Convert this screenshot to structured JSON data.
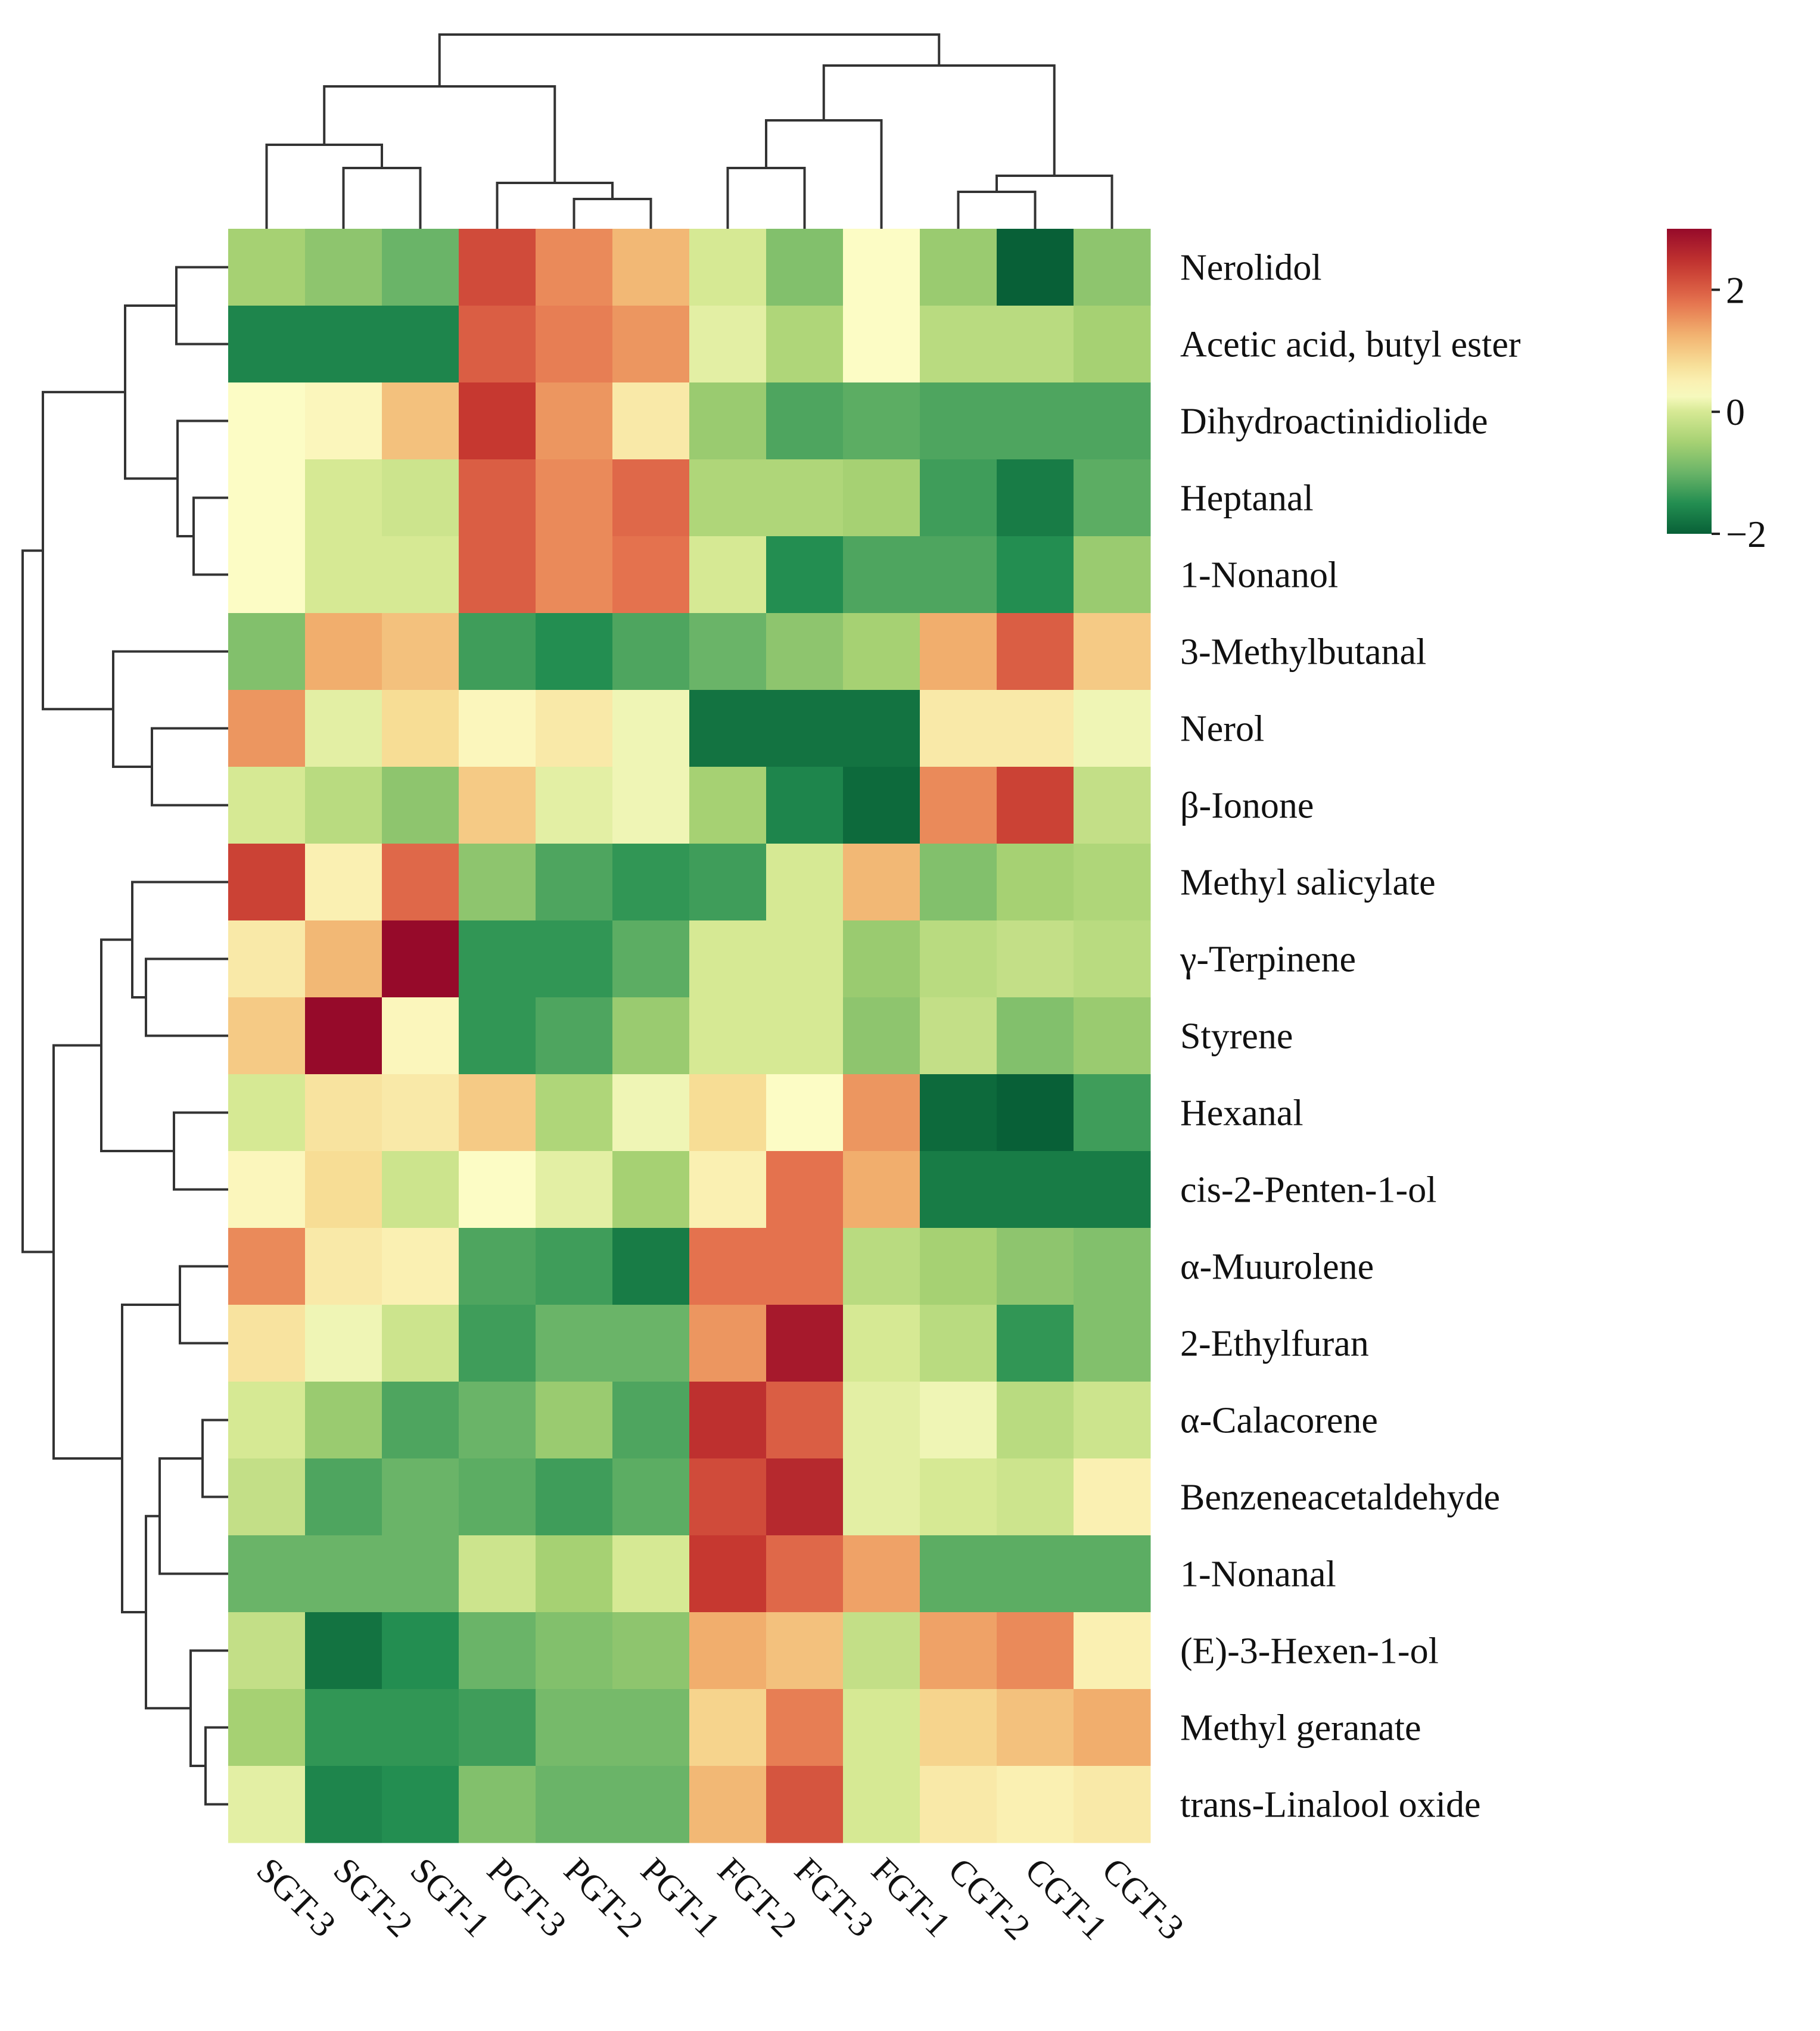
{
  "chart_data": {
    "type": "heatmap",
    "title": "",
    "columns": [
      "SGT-3",
      "SGT-2",
      "SGT-1",
      "PGT-3",
      "PGT-2",
      "PGT-1",
      "FGT-2",
      "FGT-3",
      "FGT-1",
      "CGT-2",
      "CGT-1",
      "CGT-3"
    ],
    "rows": [
      "Nerolidol",
      "Acetic acid, butyl ester",
      "Dihydroactinidiolide",
      "Heptanal",
      "1-Nonanol",
      "3-Methylbutanal",
      "Nerol",
      "β-Ionone",
      "Methyl salicylate",
      "γ-Terpinene",
      "Styrene",
      "Hexanal",
      "cis-2-Penten-1-ol",
      "α-Muurolene",
      "2-Ethylfuran",
      "α-Calacorene",
      "Benzeneacetaldehyde",
      "1-Nonanal",
      "(E)-3-Hexen-1-ol",
      "Methyl geranate",
      "trans-Linalool oxide"
    ],
    "values": [
      [
        -0.5,
        -0.7,
        -1.0,
        2.2,
        1.6,
        1.2,
        0.0,
        -0.8,
        0.3,
        -0.6,
        -2.0,
        -0.7
      ],
      [
        -1.6,
        -1.6,
        -1.6,
        2.0,
        1.7,
        1.5,
        0.1,
        -0.4,
        0.3,
        -0.3,
        -0.3,
        -0.5
      ],
      [
        0.3,
        0.4,
        1.1,
        2.4,
        1.5,
        0.6,
        -0.6,
        -1.2,
        -1.1,
        -1.2,
        -1.2,
        -1.2
      ],
      [
        0.3,
        0.0,
        -0.1,
        2.0,
        1.6,
        1.9,
        -0.4,
        -0.4,
        -0.5,
        -1.3,
        -1.7,
        -1.1
      ],
      [
        0.3,
        0.0,
        0.0,
        2.0,
        1.6,
        1.8,
        0.0,
        -1.5,
        -1.2,
        -1.2,
        -1.5,
        -0.6
      ],
      [
        -0.8,
        1.3,
        1.1,
        -1.3,
        -1.5,
        -1.2,
        -1.0,
        -0.7,
        -0.5,
        1.3,
        2.0,
        1.0
      ],
      [
        1.5,
        0.1,
        0.8,
        0.4,
        0.6,
        0.2,
        -1.8,
        -1.8,
        -1.8,
        0.6,
        0.6,
        0.2
      ],
      [
        0.0,
        -0.3,
        -0.7,
        1.0,
        0.1,
        0.2,
        -0.5,
        -1.6,
        -1.9,
        1.6,
        2.3,
        -0.2
      ],
      [
        2.3,
        0.5,
        1.9,
        -0.7,
        -1.2,
        -1.4,
        -1.3,
        0.0,
        1.2,
        -0.8,
        -0.5,
        -0.4
      ],
      [
        0.6,
        1.2,
        3.0,
        -1.4,
        -1.4,
        -1.1,
        0.0,
        0.0,
        -0.6,
        -0.3,
        -0.2,
        -0.3
      ],
      [
        1.0,
        3.0,
        0.4,
        -1.4,
        -1.2,
        -0.6,
        0.0,
        0.0,
        -0.7,
        -0.2,
        -0.8,
        -0.6
      ],
      [
        0.0,
        0.7,
        0.6,
        1.0,
        -0.4,
        0.2,
        0.8,
        0.3,
        1.5,
        -1.9,
        -2.0,
        -1.3
      ],
      [
        0.4,
        0.8,
        -0.1,
        0.3,
        0.1,
        -0.5,
        0.5,
        1.8,
        1.3,
        -1.7,
        -1.7,
        -1.7
      ],
      [
        1.6,
        0.6,
        0.5,
        -1.2,
        -1.3,
        -1.7,
        1.8,
        1.8,
        -0.3,
        -0.5,
        -0.7,
        -0.8
      ],
      [
        0.7,
        0.2,
        -0.1,
        -1.3,
        -1.0,
        -1.0,
        1.5,
        2.8,
        0.0,
        -0.3,
        -1.4,
        -0.8
      ],
      [
        0.0,
        -0.6,
        -1.2,
        -1.0,
        -0.6,
        -1.2,
        2.5,
        2.0,
        0.1,
        0.2,
        -0.3,
        -0.1
      ],
      [
        -0.2,
        -1.2,
        -1.0,
        -1.1,
        -1.3,
        -1.1,
        2.2,
        2.6,
        0.1,
        0.0,
        -0.1,
        0.5
      ],
      [
        -1.0,
        -1.0,
        -1.0,
        -0.1,
        -0.5,
        0.0,
        2.4,
        1.9,
        1.4,
        -1.1,
        -1.1,
        -1.1
      ],
      [
        -0.2,
        -1.8,
        -1.5,
        -1.0,
        -0.8,
        -0.7,
        1.3,
        1.1,
        -0.2,
        1.4,
        1.6,
        0.5
      ],
      [
        -0.5,
        -1.4,
        -1.4,
        -1.3,
        -0.9,
        -0.9,
        0.9,
        1.7,
        0.0,
        0.9,
        1.1,
        1.3
      ],
      [
        0.1,
        -1.6,
        -1.5,
        -0.8,
        -1.0,
        -1.0,
        1.2,
        2.1,
        0.0,
        0.6,
        0.5,
        0.6
      ]
    ],
    "colorbar": {
      "ticks": [
        2,
        0,
        -2
      ],
      "tick_labels": [
        "2",
        "0",
        "−2"
      ],
      "min": -2,
      "max": 3,
      "low_color": "#006837",
      "mid_color": "#ffffbf",
      "high_color": "#a50026"
    }
  }
}
